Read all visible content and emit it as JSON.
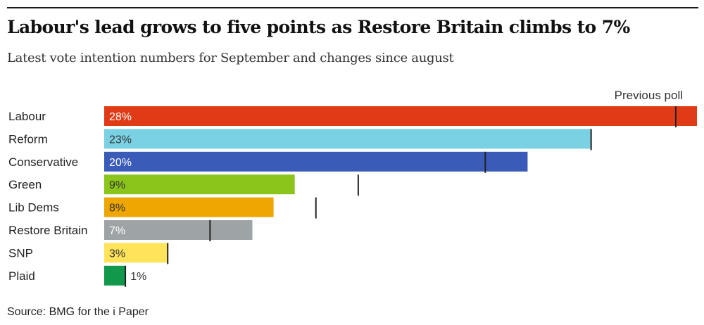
{
  "header": {
    "title": "Labour's lead grows to five points as Restore Britain climbs to 7%",
    "subtitle": "Latest vote intention numbers for September and changes since august"
  },
  "legend": {
    "previous_poll": "Previous poll"
  },
  "footer": {
    "source": "Source: BMG for the i Paper"
  },
  "chart_data": {
    "type": "bar",
    "orientation": "horizontal",
    "categories": [
      "Labour",
      "Reform",
      "Conservative",
      "Green",
      "Lib Dems",
      "Restore Britain",
      "SNP",
      "Plaid"
    ],
    "values": [
      28,
      23,
      20,
      9,
      8,
      7,
      3,
      1
    ],
    "value_labels": [
      "28%",
      "23%",
      "20%",
      "9%",
      "8%",
      "7%",
      "3%",
      "1%"
    ],
    "previous_poll": [
      27,
      23,
      18,
      12,
      10,
      5,
      3,
      1
    ],
    "colors": [
      "#e03b17",
      "#7ad1e3",
      "#3a5bb8",
      "#8bc41a",
      "#eda700",
      "#9ea3a6",
      "#ffe35a",
      "#12984a"
    ],
    "label_colors": [
      "#ffffff",
      "#333333",
      "#ffffff",
      "#333333",
      "#333333",
      "#ffffff",
      "#333333",
      "#333333"
    ],
    "xlim": [
      0,
      28
    ],
    "marker_color": "#222222"
  }
}
